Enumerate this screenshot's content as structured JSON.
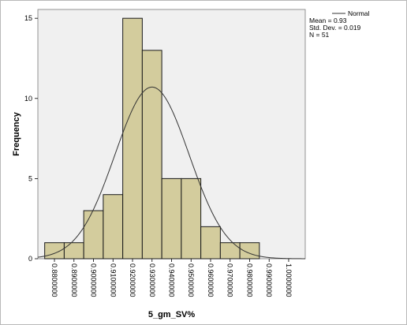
{
  "chart_data": {
    "type": "bar",
    "subtype": "histogram",
    "xlabel": "5_gm_SV%",
    "ylabel": "Frequency",
    "bin_edges": [
      0.875,
      0.885,
      0.895,
      0.905,
      0.915,
      0.925,
      0.935,
      0.945,
      0.955,
      0.965,
      0.975,
      0.985
    ],
    "values": [
      1,
      1,
      3,
      4,
      15,
      13,
      5,
      5,
      2,
      1,
      1
    ],
    "x_ticks": [
      {
        "value": 0.88,
        "label": "0.8800000"
      },
      {
        "value": 0.89,
        "label": "0.8900000"
      },
      {
        "value": 0.9,
        "label": "0.9000000"
      },
      {
        "value": 0.91,
        "label": "0.9100000"
      },
      {
        "value": 0.92,
        "label": "0.9200000"
      },
      {
        "value": 0.93,
        "label": "0.9300000"
      },
      {
        "value": 0.94,
        "label": "0.9400000"
      },
      {
        "value": 0.95,
        "label": "0.9500000"
      },
      {
        "value": 0.96,
        "label": "0.9600000"
      },
      {
        "value": 0.97,
        "label": "0.9700000"
      },
      {
        "value": 0.98,
        "label": "0.9800000"
      },
      {
        "value": 0.99,
        "label": "0.9900000"
      },
      {
        "value": 1.0,
        "label": "1.0000000"
      }
    ],
    "y_ticks": [
      {
        "value": 0,
        "label": "0"
      },
      {
        "value": 5,
        "label": "5"
      },
      {
        "value": 10,
        "label": "10"
      },
      {
        "value": 15,
        "label": "15"
      }
    ],
    "xlim": [
      0.8715,
      1.0085
    ],
    "ylim": [
      0,
      15.55
    ],
    "normal_curve": {
      "mean": 0.93,
      "std_dev": 0.019,
      "n": 51
    },
    "legend": {
      "line_label": "Normal",
      "mean_text": "Mean = 0.93",
      "std_text": "Std. Dev. = 0.019",
      "n_text": "N = 51",
      "placement": "top-right outside plot"
    },
    "colors": {
      "bar_fill": "#d3cc9d",
      "bar_stroke": "#1a1a1a",
      "plot_background": "#f0f0f0",
      "curve": "#333333"
    },
    "grid": false
  }
}
